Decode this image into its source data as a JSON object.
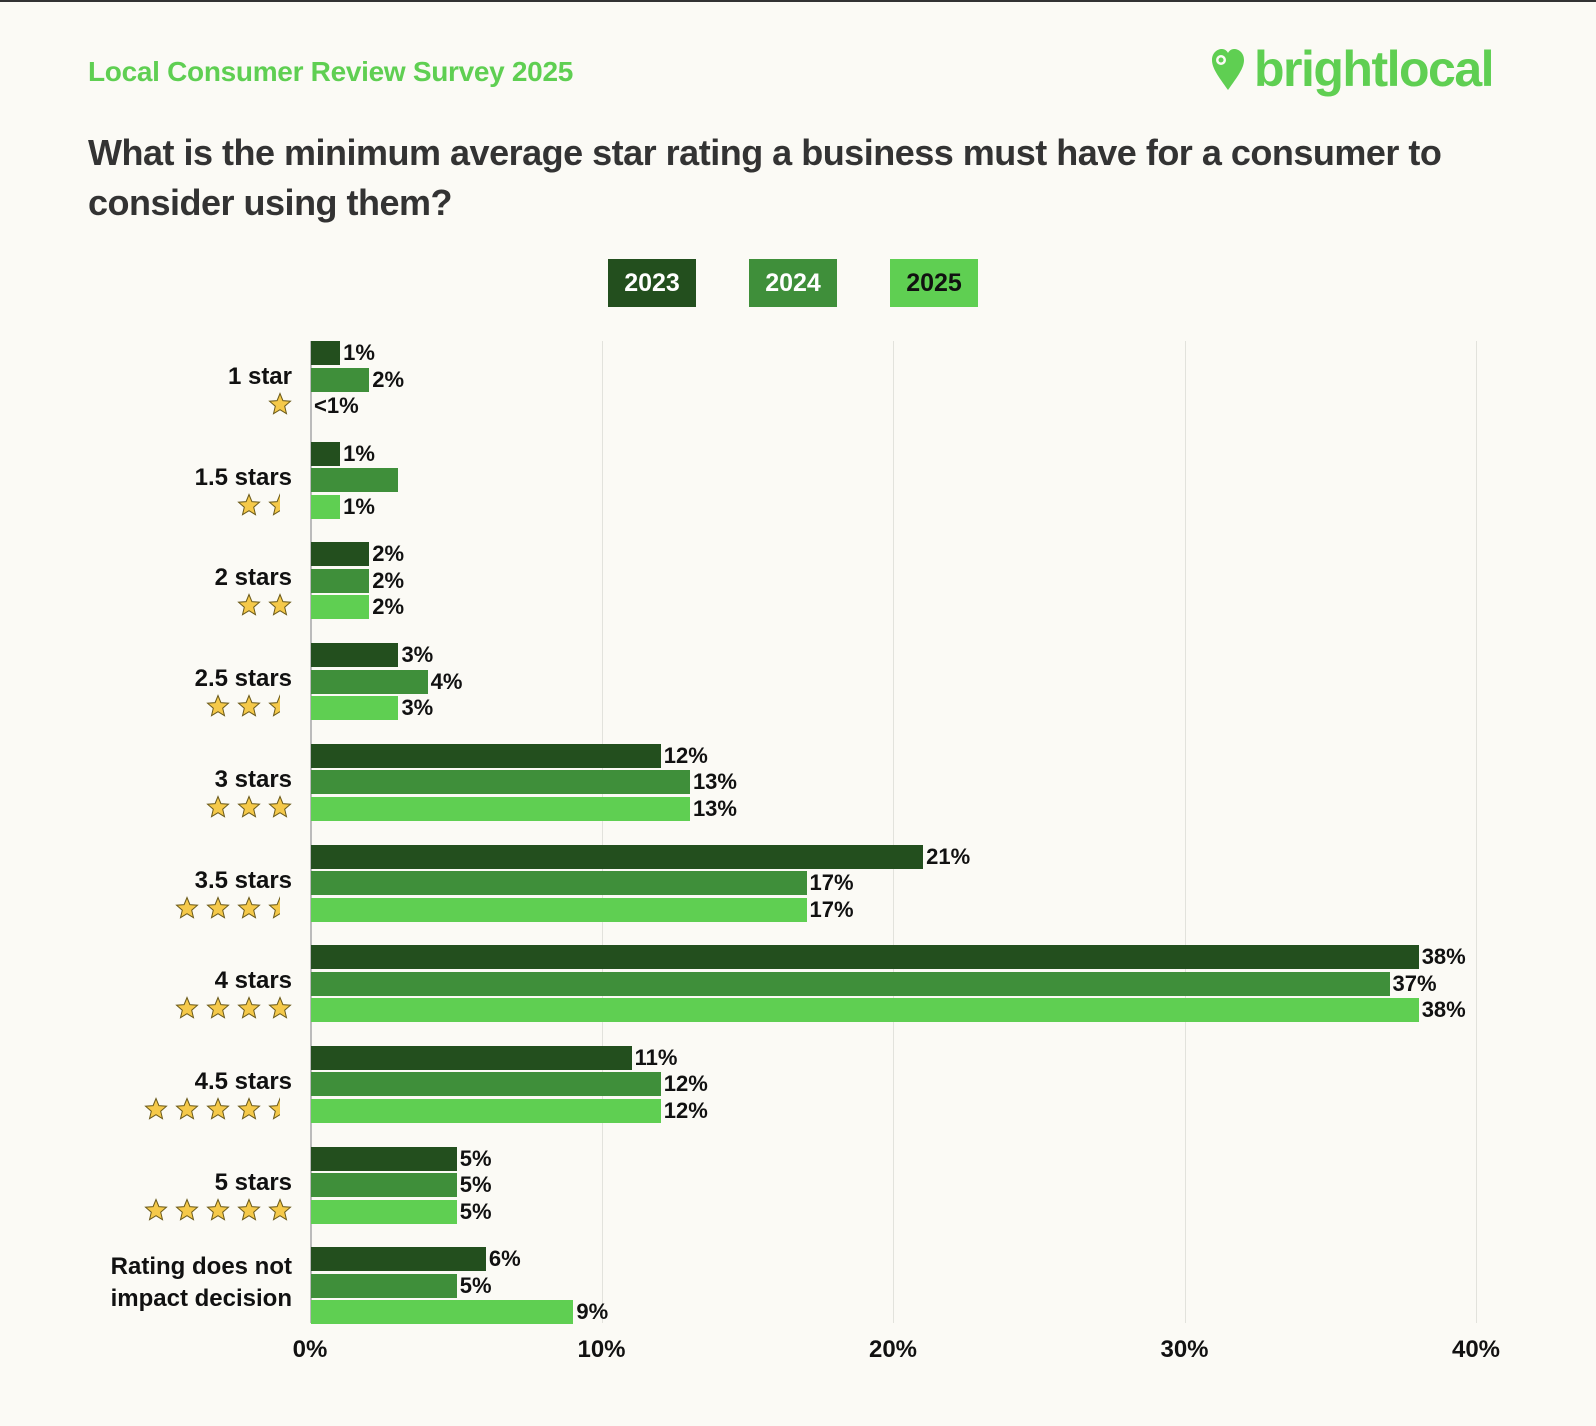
{
  "header": {
    "survey_title": "Local Consumer Review Survey 2025",
    "logo_text": "brightlocal"
  },
  "colors": {
    "2023": "#234f1e",
    "2024": "#3f8f3a",
    "2025": "#5fcf52",
    "star": "#f5c94a",
    "brand": "#5fcf52"
  },
  "chart_data": {
    "type": "bar",
    "orientation": "horizontal",
    "title": "What is the minimum average star rating a business must have for a consumer to consider using them?",
    "categories": [
      "1 star",
      "1.5 stars",
      "2 stars",
      "2.5 stars",
      "3 stars",
      "3.5 stars",
      "4 stars",
      "4.5 stars",
      "5 stars",
      "Rating does not impact decision"
    ],
    "category_label_lines": [
      [
        "1 star"
      ],
      [
        "1.5 stars"
      ],
      [
        "2 stars"
      ],
      [
        "2.5 stars"
      ],
      [
        "3 stars"
      ],
      [
        "3.5 stars"
      ],
      [
        "4 stars"
      ],
      [
        "4.5 stars"
      ],
      [
        "5 stars"
      ],
      [
        "Rating does not",
        "impact decision"
      ]
    ],
    "category_stars": [
      1,
      1.5,
      2,
      2.5,
      3,
      3.5,
      4,
      4.5,
      5,
      0
    ],
    "series": [
      {
        "name": "2023",
        "values": [
          1,
          1,
          2,
          3,
          12,
          21,
          38,
          11,
          5,
          6
        ],
        "labels": [
          "1%",
          "1%",
          "2%",
          "3%",
          "12%",
          "21%",
          "38%",
          "11%",
          "5%",
          "6%"
        ]
      },
      {
        "name": "2024",
        "values": [
          2,
          3,
          2,
          4,
          13,
          17,
          37,
          12,
          5,
          5
        ],
        "labels": [
          "2%",
          "",
          "2%",
          "4%",
          "13%",
          "17%",
          "37%",
          "12%",
          "5%",
          "5%"
        ]
      },
      {
        "name": "2025",
        "values": [
          0,
          1,
          2,
          3,
          13,
          17,
          38,
          12,
          5,
          9
        ],
        "labels": [
          "<1%",
          "1%",
          "2%",
          "3%",
          "13%",
          "17%",
          "38%",
          "12%",
          "5%",
          "9%"
        ]
      }
    ],
    "xlim": [
      0,
      40
    ],
    "xticks": [
      0,
      10,
      20,
      30,
      40
    ],
    "xtick_labels": [
      "0%",
      "10%",
      "20%",
      "30%",
      "40%"
    ],
    "grid": true,
    "legend_placement": "top-center"
  }
}
